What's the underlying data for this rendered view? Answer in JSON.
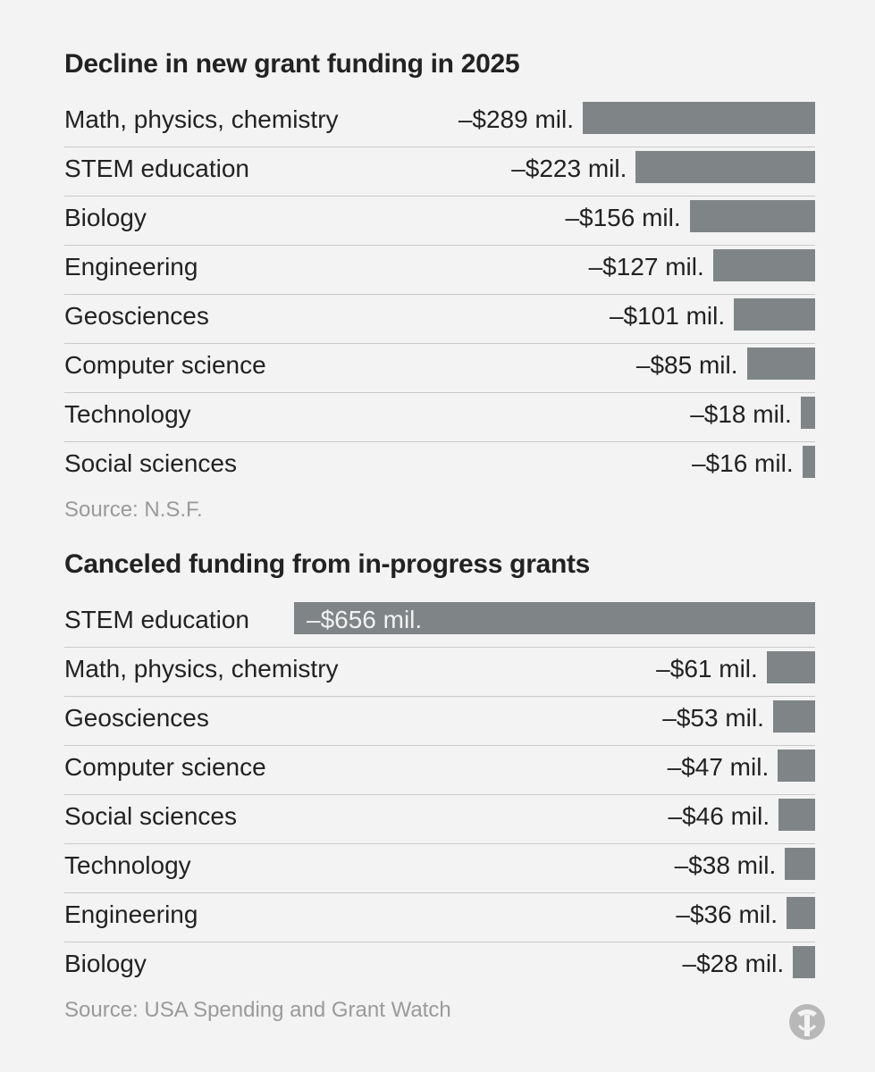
{
  "chart_data": [
    {
      "type": "bar",
      "orientation": "horizontal",
      "title": "Decline in new grant funding in 2025",
      "categories": [
        "Math, physics, chemistry",
        "STEM education",
        "Biology",
        "Engineering",
        "Geosciences",
        "Computer science",
        "Technology",
        "Social sciences"
      ],
      "values": [
        -289,
        -223,
        -156,
        -127,
        -101,
        -85,
        -18,
        -16
      ],
      "value_labels": [
        "–$289 mil.",
        "–$223 mil.",
        "–$156 mil.",
        "–$127 mil.",
        "–$101 mil.",
        "–$85 mil.",
        "–$18 mil.",
        "–$16 mil."
      ],
      "unit": "million dollars",
      "source": "Source: N.S.F."
    },
    {
      "type": "bar",
      "orientation": "horizontal",
      "title": "Canceled funding from in-progress grants",
      "categories": [
        "STEM education",
        "Math, physics, chemistry",
        "Geosciences",
        "Computer science",
        "Social sciences",
        "Technology",
        "Engineering",
        "Biology"
      ],
      "values": [
        -656,
        -61,
        -53,
        -47,
        -46,
        -38,
        -36,
        -28
      ],
      "value_labels": [
        "–$656 mil.",
        "–$61 mil.",
        "–$53 mil.",
        "–$47 mil.",
        "–$46 mil.",
        "–$38 mil.",
        "–$36 mil.",
        "–$28 mil."
      ],
      "unit": "million dollars",
      "source": "Source: USA Spending and Grant Watch"
    }
  ],
  "colors": {
    "bar": "#7f8586",
    "background": "#f3f3f3",
    "source_text": "#9a9a9a"
  },
  "logo": {
    "icon": "nyt-t-logo-icon"
  }
}
